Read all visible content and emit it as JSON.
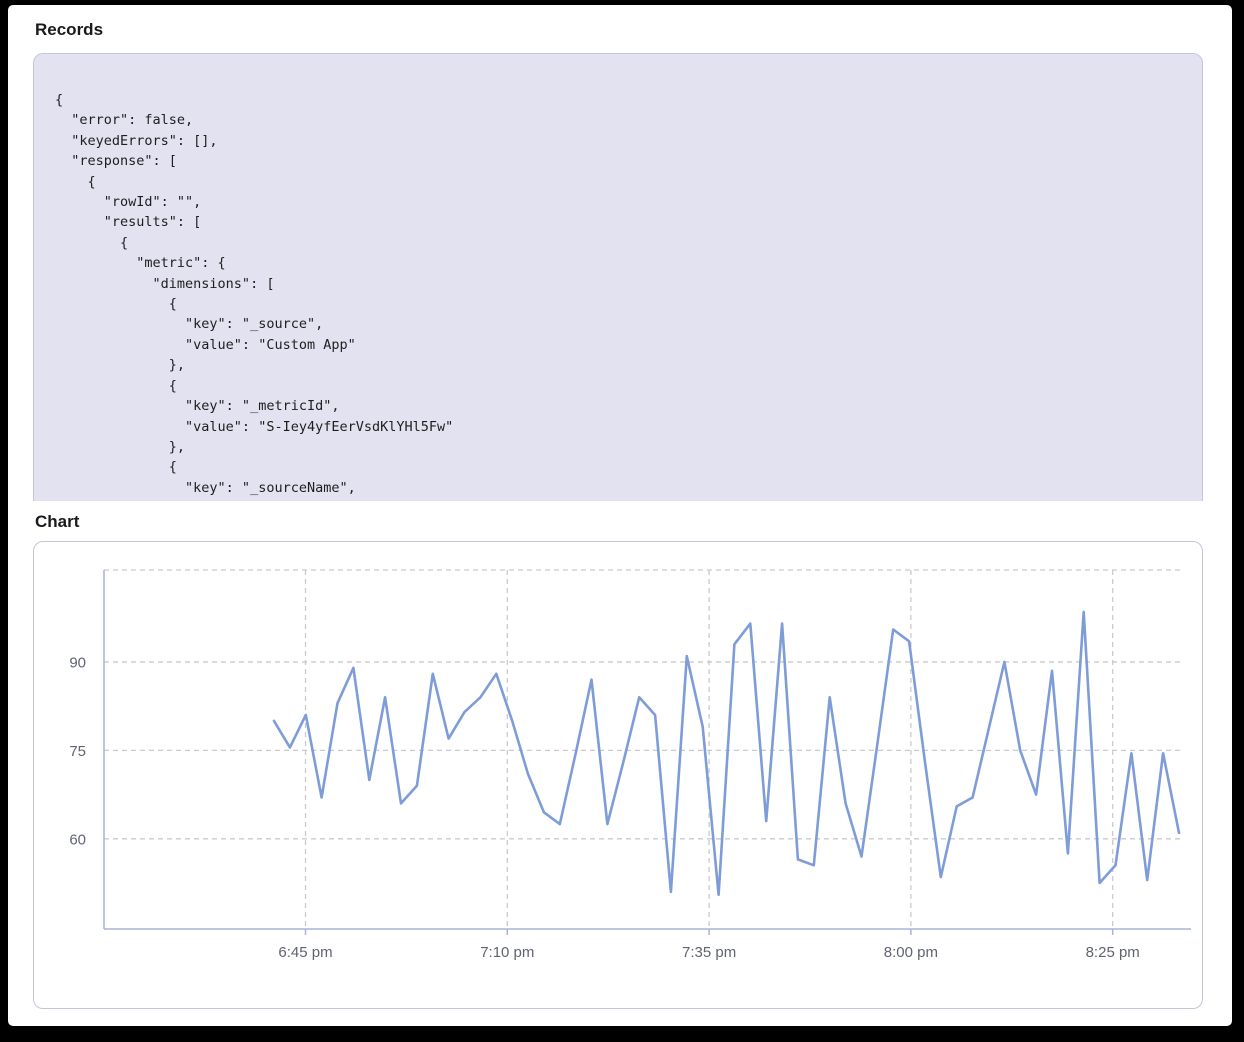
{
  "records": {
    "heading": "Records",
    "code": "{\n  \"error\": false,\n  \"keyedErrors\": [],\n  \"response\": [\n    {\n      \"rowId\": \"\",\n      \"results\": [\n        {\n          \"metric\": {\n            \"dimensions\": [\n              {\n                \"key\": \"_source\",\n                \"value\": \"Custom App\"\n              },\n              {\n                \"key\": \"_metricId\",\n                \"value\": \"S-Iey4yfEerVsdKlYHl5Fw\"\n              },\n              {\n                \"key\": \"_sourceName\","
  },
  "chart": {
    "heading": "Chart"
  },
  "chart_data": {
    "type": "line",
    "title": "",
    "legend": "none",
    "grid": "dashed",
    "line_color": "#7e9cd7",
    "axis_color": "#aab3d6",
    "grid_color": "#c9c9cf",
    "tick_text_color": "#606470",
    "y_ticks": [
      60,
      75,
      90
    ],
    "y_tick_labels": [
      "60",
      "75",
      "90"
    ],
    "ylim": [
      44.7,
      105.6
    ],
    "x_tick_labels": [
      "6:45 pm",
      "7:10 pm",
      "7:35 pm",
      "8:00 pm",
      "8:25 pm"
    ],
    "x_times": [
      "6:41 pm",
      "6:43 pm",
      "6:45 pm",
      "6:47 pm",
      "6:49 pm",
      "6:51 pm",
      "6:53 pm",
      "6:55 pm",
      "6:57 pm",
      "6:59 pm",
      "7:01 pm",
      "7:03 pm",
      "7:05 pm",
      "7:07 pm",
      "7:09 pm",
      "7:11 pm",
      "7:13 pm",
      "7:15 pm",
      "7:17 pm",
      "7:19 pm",
      "7:21 pm",
      "7:23 pm",
      "7:25 pm",
      "7:27 pm",
      "7:29 pm",
      "7:31 pm",
      "7:33 pm",
      "7:35 pm",
      "7:37 pm",
      "7:39 pm",
      "7:41 pm",
      "7:43 pm",
      "7:45 pm",
      "7:47 pm",
      "7:49 pm",
      "7:51 pm",
      "7:53 pm",
      "7:55 pm",
      "7:57 pm",
      "7:59 pm",
      "8:01 pm",
      "8:03 pm",
      "8:05 pm",
      "8:07 pm",
      "8:09 pm",
      "8:11 pm",
      "8:13 pm",
      "8:15 pm",
      "8:17 pm",
      "8:19 pm",
      "8:21 pm",
      "8:23 pm",
      "8:25 pm",
      "8:27 pm",
      "8:29 pm",
      "8:31 pm",
      "8:33 pm",
      "8:35 pm"
    ],
    "values": [
      80,
      75.5,
      81,
      67,
      83,
      89,
      70,
      84,
      66,
      69,
      88,
      77,
      81.5,
      84,
      88,
      80,
      71,
      64.5,
      62.5,
      74.5,
      87,
      62.5,
      73,
      84,
      81,
      51,
      91,
      79,
      50.5,
      93,
      96.5,
      63,
      96.5,
      56.5,
      55.5,
      84,
      66,
      57,
      76,
      95.5,
      93.5,
      73,
      53.5,
      65.5,
      67,
      78.5,
      90,
      75,
      67.5,
      88.5,
      57.5,
      98.5,
      52.5,
      55.5,
      74.5,
      53,
      74.5,
      61
    ]
  }
}
